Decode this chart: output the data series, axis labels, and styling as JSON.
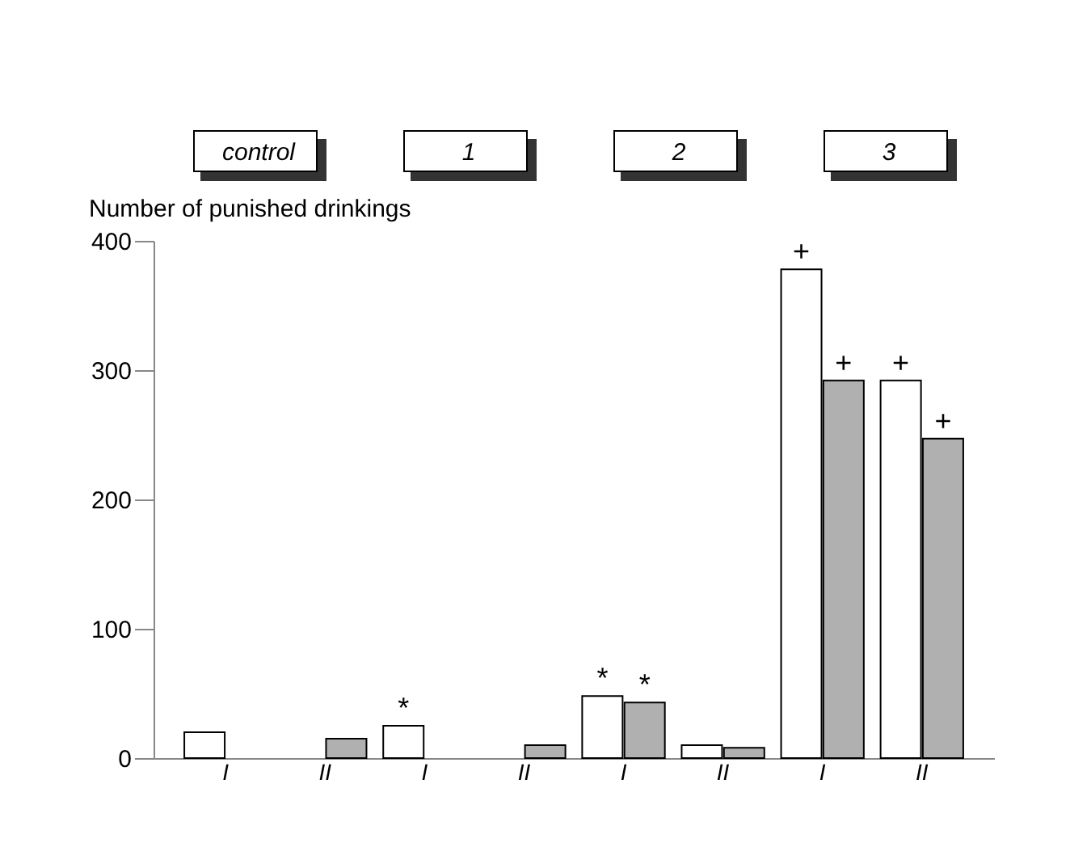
{
  "chart_data": {
    "type": "bar",
    "ylabel": "Number of punished drinkings",
    "categories": [
      "I",
      "II",
      "I",
      "II",
      "I",
      "II",
      "I",
      "II"
    ],
    "series": [
      {
        "color": "#ffffff",
        "values": [
          20,
          null,
          25,
          null,
          48,
          10,
          378,
          292
        ],
        "value_labels": [
          null,
          null,
          "*",
          null,
          "*",
          null,
          "+",
          "+"
        ]
      },
      {
        "color": "#b0b0b0",
        "values": [
          null,
          15,
          null,
          10,
          43,
          8,
          292,
          247
        ],
        "value_labels": [
          null,
          null,
          null,
          null,
          "*",
          null,
          "+",
          "+"
        ]
      }
    ],
    "annotations": [
      "control",
      "1",
      "2",
      "3"
    ],
    "ylim": [
      0,
      400
    ],
    "yticks": [
      0,
      100,
      200,
      300,
      400
    ],
    "grid": false
  }
}
